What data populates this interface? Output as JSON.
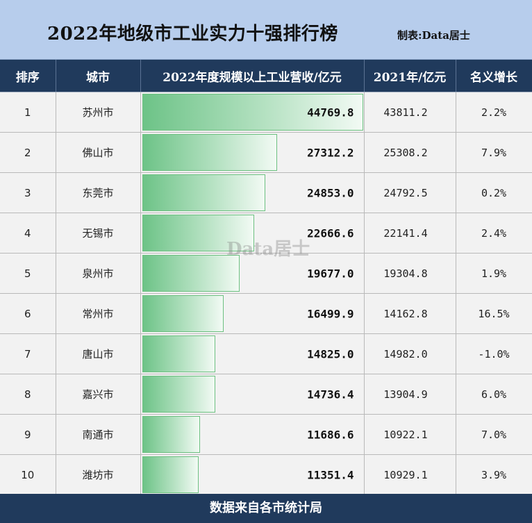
{
  "title": "2022年地级市工业实力十强排行榜",
  "credit": "制表:Data居士",
  "headers": [
    "排序",
    "城市",
    "2022年度规模以上工业营收/亿元",
    "2021年/亿元",
    "名义增长"
  ],
  "watermark": "Data居士",
  "footer": "数据来自各市统计局",
  "colors": {
    "header_bg": "#203a5c",
    "title_bg": "#b7cdec",
    "bar": "#6dc387",
    "negative": "#d0171d"
  },
  "chart_data": {
    "type": "table",
    "columns": [
      "排序",
      "城市",
      "2022年度规模以上工业营收/亿元",
      "2021年/亿元",
      "名义增长"
    ],
    "rows": [
      {
        "rank": "1",
        "city": "苏州市",
        "v2022": "44769.8",
        "v2021": "43811.2",
        "growth": "2.2%",
        "value": 44769.8
      },
      {
        "rank": "2",
        "city": "佛山市",
        "v2022": "27312.2",
        "v2021": "25308.2",
        "growth": "7.9%",
        "value": 27312.2
      },
      {
        "rank": "3",
        "city": "东莞市",
        "v2022": "24853.0",
        "v2021": "24792.5",
        "growth": "0.2%",
        "value": 24853.0
      },
      {
        "rank": "4",
        "city": "无锡市",
        "v2022": "22666.6",
        "v2021": "22141.4",
        "growth": "2.4%",
        "value": 22666.6
      },
      {
        "rank": "5",
        "city": "泉州市",
        "v2022": "19677.0",
        "v2021": "19304.8",
        "growth": "1.9%",
        "value": 19677.0
      },
      {
        "rank": "6",
        "city": "常州市",
        "v2022": "16499.9",
        "v2021": "14162.8",
        "growth": "16.5%",
        "value": 16499.9
      },
      {
        "rank": "7",
        "city": "唐山市",
        "v2022": "14825.0",
        "v2021": "14982.0",
        "growth": "-1.0%",
        "value": 14825.0
      },
      {
        "rank": "8",
        "city": "嘉兴市",
        "v2022": "14736.4",
        "v2021": "13904.9",
        "growth": "6.0%",
        "value": 14736.4
      },
      {
        "rank": "9",
        "city": "南通市",
        "v2022": "11686.6",
        "v2021": "10922.1",
        "growth": "7.0%",
        "value": 11686.6
      },
      {
        "rank": "10",
        "city": "潍坊市",
        "v2022": "11351.4",
        "v2021": "10929.1",
        "growth": "3.9%",
        "value": 11351.4
      }
    ]
  }
}
